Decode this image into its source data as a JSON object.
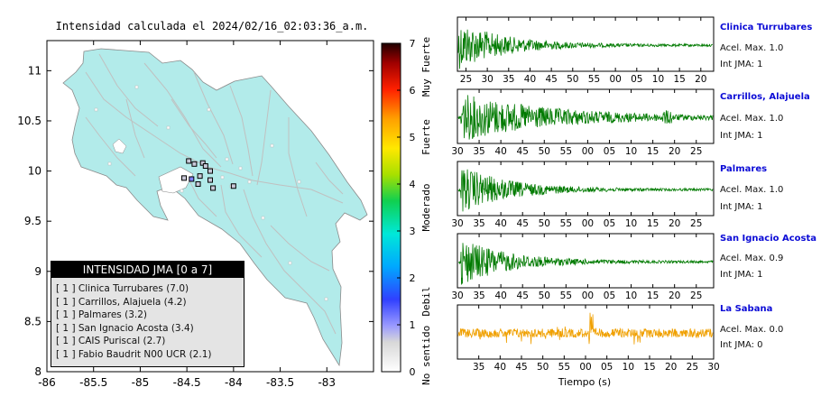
{
  "map_title": "Intensidad calculada el 2024/02/16_02:03:36_a.m.",
  "map": {
    "y_ticks": [
      "11",
      "10.5",
      "10",
      "9.5",
      "9",
      "8.5",
      "8"
    ],
    "x_ticks": [
      "-86",
      "-85.5",
      "-85",
      "-84.5",
      "-84",
      "-83.5",
      "-83"
    ],
    "xlim": [
      -86,
      -82.5
    ],
    "ylim": [
      8,
      11.3
    ],
    "land_color": "#b2ebea",
    "stations": [
      {
        "lon": -84.48,
        "lat": 10.1,
        "color": "#c8c8d8"
      },
      {
        "lon": -84.42,
        "lat": 10.07,
        "color": "#c8c8d8"
      },
      {
        "lon": -84.33,
        "lat": 10.08,
        "color": "#c8c8d8"
      },
      {
        "lon": -84.3,
        "lat": 10.05,
        "color": "#c8c8d8"
      },
      {
        "lon": -84.25,
        "lat": 10.0,
        "color": "#c8c8d8"
      },
      {
        "lon": -84.53,
        "lat": 9.93,
        "color": "#c8c8d8"
      },
      {
        "lon": -84.45,
        "lat": 9.92,
        "color": "#8080ff"
      },
      {
        "lon": -84.36,
        "lat": 9.95,
        "color": "#c8c8d8"
      },
      {
        "lon": -84.25,
        "lat": 9.91,
        "color": "#c8c8d8"
      },
      {
        "lon": -84.38,
        "lat": 9.87,
        "color": "#c8c8d8"
      },
      {
        "lon": -84.22,
        "lat": 9.83,
        "color": "#c8c8d8"
      },
      {
        "lon": -84.0,
        "lat": 9.85,
        "color": "#c8c8d8"
      }
    ]
  },
  "colorbar": {
    "ticks": [
      "0",
      "1",
      "2",
      "3",
      "4",
      "5",
      "6",
      "7"
    ],
    "categories": [
      "No sentido",
      "Debil",
      "Moderado",
      "Fuerte",
      "Muy Fuerte"
    ]
  },
  "legend": {
    "title": "INTENSIDAD JMA [0 a 7]",
    "items": [
      "[ 1 ]  Clinica Turrubares (7.0)",
      "[ 1 ]  Carrillos, Alajuela (4.2)",
      "[ 1 ]  Palmares (3.2)",
      "[ 1 ]  San Ignacio Acosta (3.4)",
      "[ 1 ]  CAIS Puriscal (2.7)",
      "[ 1 ]  Fabio Baudrit N00 UCR (2.1)"
    ]
  },
  "traces": [
    {
      "station": "Clinica Turrubares",
      "accel": "Acel. Max. 1.0",
      "jma": "Int JMA: 1",
      "color": "#007a00",
      "ticks": [
        "25",
        "30",
        "35",
        "40",
        "45",
        "50",
        "55",
        "00",
        "05",
        "10",
        "15",
        "20"
      ],
      "x_start": 23,
      "x_end": 83,
      "tick_first": 25
    },
    {
      "station": "Carrillos, Alajuela",
      "accel": "Acel. Max. 1.0",
      "jma": "Int JMA: 1",
      "color": "#007a00",
      "ticks": [
        "30",
        "35",
        "40",
        "45",
        "50",
        "55",
        "00",
        "05",
        "10",
        "15",
        "20",
        "25"
      ],
      "x_start": 30,
      "x_end": 89,
      "tick_first": 30
    },
    {
      "station": "Palmares",
      "accel": "Acel. Max. 1.0",
      "jma": "Int JMA: 1",
      "color": "#007a00",
      "ticks": [
        "30",
        "35",
        "40",
        "45",
        "50",
        "55",
        "00",
        "05",
        "10",
        "15",
        "20",
        "25"
      ],
      "x_start": 30,
      "x_end": 89,
      "tick_first": 30
    },
    {
      "station": "San Ignacio Acosta",
      "accel": "Acel. Max. 0.9",
      "jma": "Int JMA: 1",
      "color": "#007a00",
      "ticks": [
        "30",
        "35",
        "40",
        "45",
        "50",
        "55",
        "00",
        "05",
        "10",
        "15",
        "20",
        "25"
      ],
      "x_start": 30,
      "x_end": 89,
      "tick_first": 30
    },
    {
      "station": "La Sabana",
      "accel": "Acel. Max. 0.0",
      "jma": "Int JMA: 0",
      "color": "#f0a000",
      "ticks": [
        "35",
        "40",
        "45",
        "50",
        "55",
        "00",
        "05",
        "10",
        "15",
        "20",
        "25",
        "30"
      ],
      "x_start": 30,
      "x_end": 90,
      "tick_first": 35
    }
  ],
  "x_axis_label": "Tiempo (s)",
  "chart_data": [
    {
      "type": "scatter",
      "title": "Intensidad calculada el 2024/02/16_02:03:36_a.m.",
      "xlim": [
        -86,
        -82.5
      ],
      "ylim": [
        8,
        11.3
      ],
      "x_ticks": [
        -86,
        -85.5,
        -85,
        -84.5,
        -84,
        -83.5,
        -83
      ],
      "y_ticks": [
        8,
        8.5,
        9,
        9.5,
        10,
        10.5,
        11
      ]
    },
    {
      "type": "line",
      "series": [
        {
          "name": "Clinica Turrubares",
          "peak_accel": 1.0,
          "jma": 1
        },
        {
          "name": "Carrillos, Alajuela",
          "peak_accel": 1.0,
          "jma": 1
        },
        {
          "name": "Palmares",
          "peak_accel": 1.0,
          "jma": 1
        },
        {
          "name": "San Ignacio Acosta",
          "peak_accel": 0.9,
          "jma": 1
        },
        {
          "name": "La Sabana",
          "peak_accel": 0.0,
          "jma": 0
        }
      ],
      "xlabel": "Tiempo (s)"
    }
  ]
}
